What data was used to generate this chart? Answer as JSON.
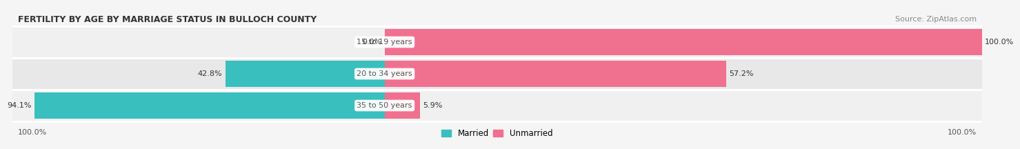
{
  "title": "FERTILITY BY AGE BY MARRIAGE STATUS IN BULLOCH COUNTY",
  "source": "Source: ZipAtlas.com",
  "categories": [
    "15 to 19 years",
    "20 to 34 years",
    "35 to 50 years"
  ],
  "married": [
    0.0,
    42.8,
    94.1
  ],
  "unmarried": [
    100.0,
    57.2,
    5.9
  ],
  "married_color": "#3abfbf",
  "unmarried_color": "#f07090",
  "bar_bg_color": "#e8e8e8",
  "background_color": "#f5f5f5",
  "row_bg_colors": [
    "#f0f0f0",
    "#e8e8e8",
    "#f0f0f0"
  ],
  "title_fontsize": 9,
  "label_fontsize": 8,
  "category_fontsize": 8,
  "legend_fontsize": 8.5,
  "source_fontsize": 8
}
